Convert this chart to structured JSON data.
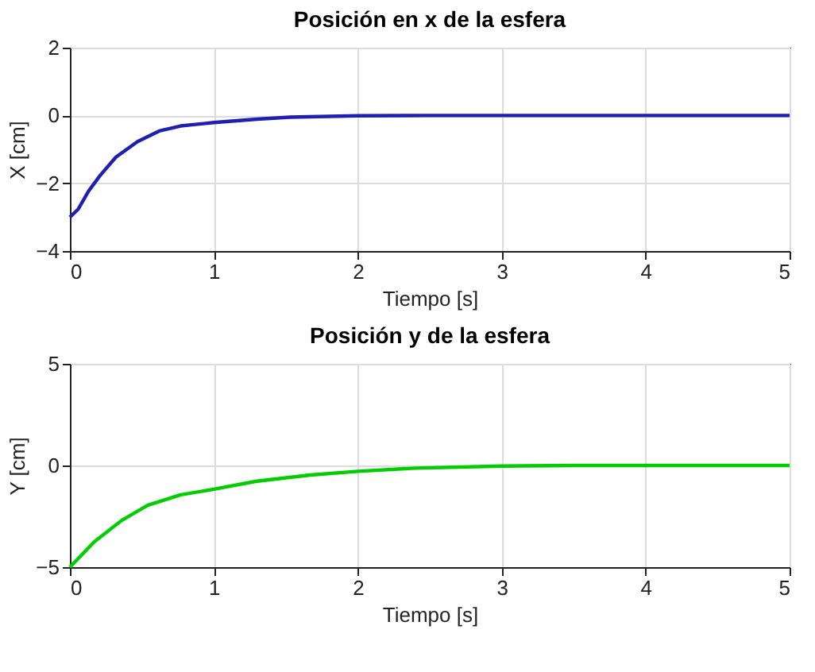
{
  "chart_data": [
    {
      "type": "line",
      "title": "Posición en x de la esfera",
      "xlabel": "Tiempo [s]",
      "ylabel": "X [cm]",
      "x": [
        0,
        0.057,
        0.13,
        0.21,
        0.32,
        0.47,
        0.62,
        0.77,
        1,
        1.3,
        1.53,
        2,
        2.5,
        3,
        4,
        5
      ],
      "values": [
        -3,
        -2.77,
        -2.23,
        -1.77,
        -1.23,
        -0.77,
        -0.46,
        -0.31,
        -0.21,
        -0.11,
        -0.05,
        -0.01,
        0,
        0,
        0,
        0
      ],
      "color": "#2020b0",
      "xlim": [
        0,
        5
      ],
      "ylim": [
        -4,
        2
      ],
      "xticks": [
        0,
        1,
        2,
        3,
        4,
        5
      ],
      "yticks": [
        -4,
        -2,
        0,
        2
      ],
      "grid": true
    },
    {
      "type": "line",
      "title": "Posición y de la esfera",
      "xlabel": "Tiempo [s]",
      "ylabel": "Y [cm]",
      "x": [
        0,
        0.17,
        0.36,
        0.54,
        0.77,
        1,
        1.29,
        1.67,
        2,
        2.4,
        3,
        3.5,
        4,
        5
      ],
      "values": [
        -5,
        -3.75,
        -2.7,
        -1.96,
        -1.44,
        -1.17,
        -0.78,
        -0.47,
        -0.29,
        -0.13,
        -0.03,
        0,
        0,
        0
      ],
      "color": "#00cc00",
      "xlim": [
        0,
        5
      ],
      "ylim": [
        -5,
        5
      ],
      "xticks": [
        0,
        1,
        2,
        3,
        4,
        5
      ],
      "yticks": [
        -5,
        0,
        5
      ],
      "grid": true
    }
  ]
}
